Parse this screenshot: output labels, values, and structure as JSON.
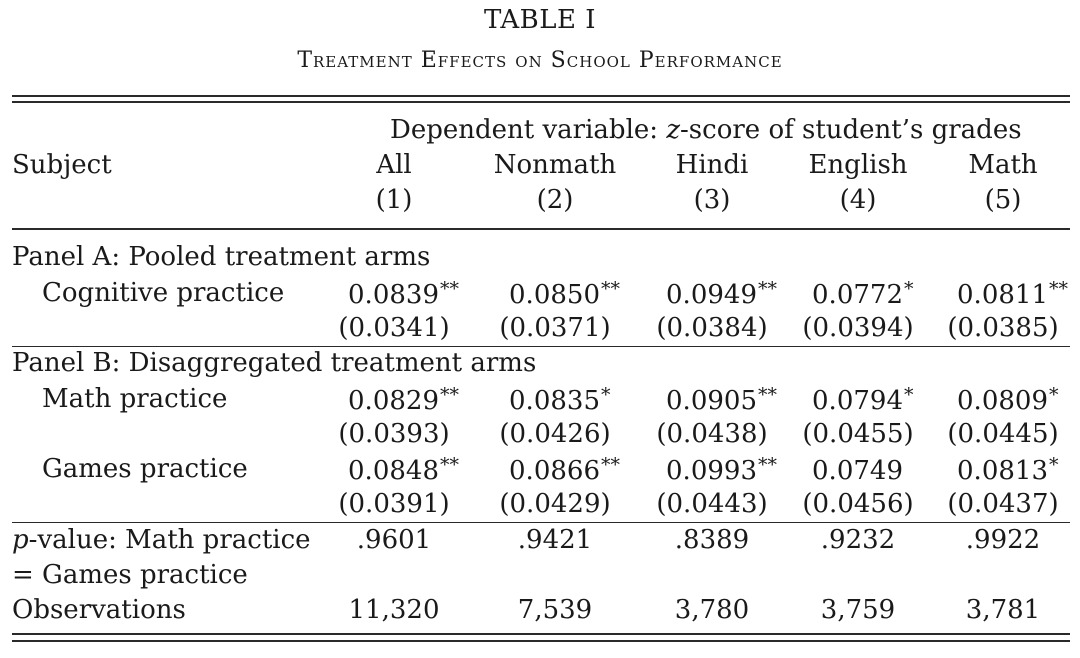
{
  "table": {
    "title": "TABLE I",
    "subtitle": "Treatment Effects on School Performance",
    "header": {
      "dep_prefix": "Dependent variable: ",
      "dep_italic": "z",
      "dep_suffix": "-score of student’s grades",
      "subject_label": "Subject",
      "columns": [
        {
          "name": "All",
          "number": "(1)"
        },
        {
          "name": "Nonmath",
          "number": "(2)"
        },
        {
          "name": "Hindi",
          "number": "(3)"
        },
        {
          "name": "English",
          "number": "(4)"
        },
        {
          "name": "Math",
          "number": "(5)"
        }
      ]
    },
    "panel_a": {
      "label": "Panel A: Pooled treatment arms",
      "rows": [
        {
          "label": "Cognitive practice",
          "coef": [
            {
              "v": "0.0839",
              "s": "**"
            },
            {
              "v": "0.0850",
              "s": "**"
            },
            {
              "v": "0.0949",
              "s": "**"
            },
            {
              "v": "0.0772",
              "s": "*"
            },
            {
              "v": "0.0811",
              "s": "**"
            }
          ],
          "se": [
            "(0.0341)",
            "(0.0371)",
            "(0.0384)",
            "(0.0394)",
            "(0.0385)"
          ]
        }
      ]
    },
    "panel_b": {
      "label": "Panel B: Disaggregated treatment arms",
      "rows": [
        {
          "label": "Math practice",
          "coef": [
            {
              "v": "0.0829",
              "s": "**"
            },
            {
              "v": "0.0835",
              "s": "*"
            },
            {
              "v": "0.0905",
              "s": "**"
            },
            {
              "v": "0.0794",
              "s": "*"
            },
            {
              "v": "0.0809",
              "s": "*"
            }
          ],
          "se": [
            "(0.0393)",
            "(0.0426)",
            "(0.0438)",
            "(0.0455)",
            "(0.0445)"
          ]
        },
        {
          "label": "Games practice",
          "coef": [
            {
              "v": "0.0848",
              "s": "**"
            },
            {
              "v": "0.0866",
              "s": "**"
            },
            {
              "v": "0.0993",
              "s": "**"
            },
            {
              "v": "0.0749",
              "s": ""
            },
            {
              "v": "0.0813",
              "s": "*"
            }
          ],
          "se": [
            "(0.0391)",
            "(0.0429)",
            "(0.0443)",
            "(0.0456)",
            "(0.0437)"
          ]
        }
      ]
    },
    "pvalue": {
      "label_italic": "p",
      "label_rest": "-value: Math practice",
      "label_line2": "= Games practice",
      "values": [
        ".9601",
        ".9421",
        ".8389",
        ".9232",
        ".9922"
      ]
    },
    "observations": {
      "label": "Observations",
      "values": [
        "11,320",
        "7,539",
        "3,780",
        "3,759",
        "3,781"
      ]
    }
  }
}
